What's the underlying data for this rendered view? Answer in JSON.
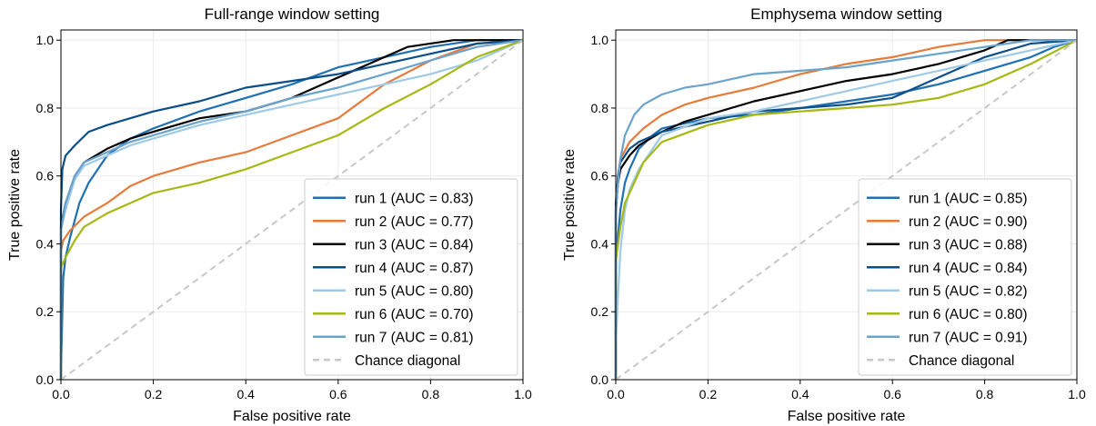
{
  "chart_data": [
    {
      "type": "line",
      "title": "Full-range window setting",
      "xlabel": "False positive rate",
      "ylabel": "True positive rate",
      "xlim": [
        0,
        1
      ],
      "ylim": [
        0,
        1.03
      ],
      "xticks": [
        "0.0",
        "0.2",
        "0.4",
        "0.6",
        "0.8",
        "1.0"
      ],
      "yticks": [
        "0.0",
        "0.2",
        "0.4",
        "0.6",
        "0.8",
        "1.0"
      ],
      "grid": true,
      "legend_position": "lower-right",
      "series": [
        {
          "name": "run 1 (AUC = 0.83)",
          "color": "#1f6fb4",
          "points": [
            [
              0,
              0
            ],
            [
              0,
              0.02
            ],
            [
              0.005,
              0.3
            ],
            [
              0.01,
              0.36
            ],
            [
              0.02,
              0.42
            ],
            [
              0.04,
              0.52
            ],
            [
              0.06,
              0.58
            ],
            [
              0.08,
              0.62
            ],
            [
              0.1,
              0.66
            ],
            [
              0.15,
              0.71
            ],
            [
              0.2,
              0.74
            ],
            [
              0.3,
              0.79
            ],
            [
              0.4,
              0.83
            ],
            [
              0.5,
              0.87
            ],
            [
              0.6,
              0.92
            ],
            [
              0.7,
              0.95
            ],
            [
              0.8,
              0.98
            ],
            [
              0.9,
              1.0
            ],
            [
              1,
              1
            ]
          ]
        },
        {
          "name": "run 2 (AUC = 0.77)",
          "color": "#e87a3a",
          "points": [
            [
              0,
              0
            ],
            [
              0,
              0.38
            ],
            [
              0.005,
              0.41
            ],
            [
              0.02,
              0.44
            ],
            [
              0.05,
              0.48
            ],
            [
              0.1,
              0.52
            ],
            [
              0.15,
              0.57
            ],
            [
              0.2,
              0.6
            ],
            [
              0.3,
              0.64
            ],
            [
              0.4,
              0.67
            ],
            [
              0.5,
              0.72
            ],
            [
              0.6,
              0.77
            ],
            [
              0.7,
              0.87
            ],
            [
              0.8,
              0.94
            ],
            [
              0.9,
              0.99
            ],
            [
              1,
              1
            ]
          ]
        },
        {
          "name": "run 3 (AUC = 0.84)",
          "color": "#000000",
          "points": [
            [
              0,
              0
            ],
            [
              0,
              0.45
            ],
            [
              0.01,
              0.52
            ],
            [
              0.03,
              0.6
            ],
            [
              0.05,
              0.64
            ],
            [
              0.1,
              0.68
            ],
            [
              0.15,
              0.71
            ],
            [
              0.2,
              0.73
            ],
            [
              0.3,
              0.77
            ],
            [
              0.4,
              0.79
            ],
            [
              0.5,
              0.83
            ],
            [
              0.6,
              0.89
            ],
            [
              0.7,
              0.95
            ],
            [
              0.75,
              0.98
            ],
            [
              0.85,
              1.0
            ],
            [
              1,
              1
            ]
          ]
        },
        {
          "name": "run 4 (AUC = 0.87)",
          "color": "#0b4e8a",
          "points": [
            [
              0,
              0
            ],
            [
              0,
              0.5
            ],
            [
              0.003,
              0.62
            ],
            [
              0.01,
              0.66
            ],
            [
              0.03,
              0.69
            ],
            [
              0.06,
              0.73
            ],
            [
              0.1,
              0.75
            ],
            [
              0.15,
              0.77
            ],
            [
              0.2,
              0.79
            ],
            [
              0.3,
              0.82
            ],
            [
              0.4,
              0.86
            ],
            [
              0.5,
              0.88
            ],
            [
              0.6,
              0.9
            ],
            [
              0.7,
              0.93
            ],
            [
              0.8,
              0.96
            ],
            [
              0.9,
              0.99
            ],
            [
              1,
              1
            ]
          ]
        },
        {
          "name": "run 5 (AUC = 0.80)",
          "color": "#9ecae8",
          "points": [
            [
              0,
              0
            ],
            [
              0,
              0.44
            ],
            [
              0.01,
              0.5
            ],
            [
              0.03,
              0.59
            ],
            [
              0.05,
              0.63
            ],
            [
              0.1,
              0.66
            ],
            [
              0.15,
              0.69
            ],
            [
              0.2,
              0.71
            ],
            [
              0.3,
              0.75
            ],
            [
              0.4,
              0.78
            ],
            [
              0.5,
              0.81
            ],
            [
              0.6,
              0.84
            ],
            [
              0.7,
              0.87
            ],
            [
              0.8,
              0.9
            ],
            [
              0.9,
              0.94
            ],
            [
              1,
              1
            ]
          ]
        },
        {
          "name": "run 6 (AUC = 0.70)",
          "color": "#a6b812",
          "points": [
            [
              0,
              0
            ],
            [
              0,
              0.33
            ],
            [
              0.01,
              0.36
            ],
            [
              0.03,
              0.41
            ],
            [
              0.05,
              0.45
            ],
            [
              0.1,
              0.49
            ],
            [
              0.15,
              0.52
            ],
            [
              0.2,
              0.55
            ],
            [
              0.3,
              0.58
            ],
            [
              0.4,
              0.62
            ],
            [
              0.5,
              0.67
            ],
            [
              0.6,
              0.72
            ],
            [
              0.7,
              0.8
            ],
            [
              0.8,
              0.87
            ],
            [
              0.9,
              0.95
            ],
            [
              1,
              1
            ]
          ]
        },
        {
          "name": "run 7 (AUC = 0.81)",
          "color": "#6aa3cc",
          "points": [
            [
              0,
              0
            ],
            [
              0,
              0.44
            ],
            [
              0.01,
              0.52
            ],
            [
              0.03,
              0.6
            ],
            [
              0.05,
              0.64
            ],
            [
              0.1,
              0.67
            ],
            [
              0.15,
              0.7
            ],
            [
              0.2,
              0.72
            ],
            [
              0.3,
              0.76
            ],
            [
              0.4,
              0.79
            ],
            [
              0.5,
              0.83
            ],
            [
              0.6,
              0.86
            ],
            [
              0.7,
              0.9
            ],
            [
              0.8,
              0.94
            ],
            [
              0.9,
              0.98
            ],
            [
              1,
              1
            ]
          ]
        },
        {
          "name": "Chance diagonal",
          "color": "#c8c8c8",
          "dashed": true,
          "points": [
            [
              0,
              0
            ],
            [
              1,
              1
            ]
          ]
        }
      ]
    },
    {
      "type": "line",
      "title": "Emphysema window setting",
      "xlabel": "False positive rate",
      "ylabel": "True positive rate",
      "xlim": [
        0,
        1
      ],
      "ylim": [
        0,
        1.03
      ],
      "xticks": [
        "0.0",
        "0.2",
        "0.4",
        "0.6",
        "0.8",
        "1.0"
      ],
      "yticks": [
        "0.0",
        "0.2",
        "0.4",
        "0.6",
        "0.8",
        "1.0"
      ],
      "grid": true,
      "legend_position": "lower-right",
      "series": [
        {
          "name": "run 1 (AUC = 0.85)",
          "color": "#1f6fb4",
          "points": [
            [
              0,
              0
            ],
            [
              0,
              0.35
            ],
            [
              0.01,
              0.5
            ],
            [
              0.02,
              0.58
            ],
            [
              0.03,
              0.62
            ],
            [
              0.05,
              0.68
            ],
            [
              0.08,
              0.72
            ],
            [
              0.1,
              0.74
            ],
            [
              0.2,
              0.77
            ],
            [
              0.3,
              0.78
            ],
            [
              0.4,
              0.8
            ],
            [
              0.5,
              0.82
            ],
            [
              0.6,
              0.84
            ],
            [
              0.7,
              0.87
            ],
            [
              0.8,
              0.91
            ],
            [
              0.9,
              0.95
            ],
            [
              0.95,
              0.98
            ],
            [
              1,
              1
            ]
          ]
        },
        {
          "name": "run 2 (AUC = 0.90)",
          "color": "#e87a3a",
          "points": [
            [
              0,
              0
            ],
            [
              0,
              0.48
            ],
            [
              0.005,
              0.6
            ],
            [
              0.01,
              0.65
            ],
            [
              0.03,
              0.7
            ],
            [
              0.06,
              0.74
            ],
            [
              0.1,
              0.78
            ],
            [
              0.15,
              0.81
            ],
            [
              0.2,
              0.83
            ],
            [
              0.3,
              0.86
            ],
            [
              0.4,
              0.9
            ],
            [
              0.5,
              0.93
            ],
            [
              0.6,
              0.95
            ],
            [
              0.7,
              0.98
            ],
            [
              0.8,
              1.0
            ],
            [
              1,
              1
            ]
          ]
        },
        {
          "name": "run 3 (AUC = 0.88)",
          "color": "#000000",
          "points": [
            [
              0,
              0
            ],
            [
              0,
              0.5
            ],
            [
              0.005,
              0.58
            ],
            [
              0.01,
              0.62
            ],
            [
              0.03,
              0.66
            ],
            [
              0.05,
              0.69
            ],
            [
              0.1,
              0.73
            ],
            [
              0.15,
              0.76
            ],
            [
              0.2,
              0.78
            ],
            [
              0.3,
              0.82
            ],
            [
              0.4,
              0.85
            ],
            [
              0.5,
              0.88
            ],
            [
              0.6,
              0.9
            ],
            [
              0.7,
              0.93
            ],
            [
              0.8,
              0.97
            ],
            [
              0.85,
              1.0
            ],
            [
              1,
              1
            ]
          ]
        },
        {
          "name": "run 4 (AUC = 0.84)",
          "color": "#0b4e8a",
          "points": [
            [
              0,
              0
            ],
            [
              0,
              0.52
            ],
            [
              0.005,
              0.6
            ],
            [
              0.01,
              0.64
            ],
            [
              0.03,
              0.68
            ],
            [
              0.05,
              0.7
            ],
            [
              0.1,
              0.73
            ],
            [
              0.2,
              0.76
            ],
            [
              0.3,
              0.79
            ],
            [
              0.4,
              0.8
            ],
            [
              0.5,
              0.81
            ],
            [
              0.6,
              0.83
            ],
            [
              0.7,
              0.89
            ],
            [
              0.8,
              0.95
            ],
            [
              0.9,
              0.99
            ],
            [
              1,
              1
            ]
          ]
        },
        {
          "name": "run 5 (AUC = 0.82)",
          "color": "#9ecae8",
          "points": [
            [
              0,
              0
            ],
            [
              0,
              0.1
            ],
            [
              0.005,
              0.25
            ],
            [
              0.01,
              0.38
            ],
            [
              0.02,
              0.5
            ],
            [
              0.03,
              0.56
            ],
            [
              0.05,
              0.62
            ],
            [
              0.08,
              0.68
            ],
            [
              0.1,
              0.72
            ],
            [
              0.2,
              0.77
            ],
            [
              0.3,
              0.79
            ],
            [
              0.4,
              0.82
            ],
            [
              0.5,
              0.85
            ],
            [
              0.6,
              0.88
            ],
            [
              0.7,
              0.91
            ],
            [
              0.8,
              0.94
            ],
            [
              0.9,
              0.97
            ],
            [
              1,
              1
            ]
          ]
        },
        {
          "name": "run 6 (AUC = 0.80)",
          "color": "#a6b812",
          "points": [
            [
              0,
              0
            ],
            [
              0,
              0.35
            ],
            [
              0.01,
              0.45
            ],
            [
              0.02,
              0.52
            ],
            [
              0.04,
              0.58
            ],
            [
              0.06,
              0.64
            ],
            [
              0.1,
              0.7
            ],
            [
              0.2,
              0.75
            ],
            [
              0.3,
              0.78
            ],
            [
              0.4,
              0.79
            ],
            [
              0.5,
              0.8
            ],
            [
              0.6,
              0.81
            ],
            [
              0.7,
              0.83
            ],
            [
              0.8,
              0.87
            ],
            [
              0.9,
              0.93
            ],
            [
              1,
              1
            ]
          ]
        },
        {
          "name": "run 7 (AUC = 0.91)",
          "color": "#6aa3cc",
          "points": [
            [
              0,
              0
            ],
            [
              0,
              0.5
            ],
            [
              0.005,
              0.58
            ],
            [
              0.01,
              0.65
            ],
            [
              0.02,
              0.72
            ],
            [
              0.04,
              0.78
            ],
            [
              0.06,
              0.81
            ],
            [
              0.1,
              0.84
            ],
            [
              0.15,
              0.86
            ],
            [
              0.2,
              0.87
            ],
            [
              0.3,
              0.9
            ],
            [
              0.4,
              0.91
            ],
            [
              0.5,
              0.92
            ],
            [
              0.6,
              0.94
            ],
            [
              0.7,
              0.96
            ],
            [
              0.8,
              0.98
            ],
            [
              0.9,
              1.0
            ],
            [
              1,
              1
            ]
          ]
        },
        {
          "name": "Chance diagonal",
          "color": "#c8c8c8",
          "dashed": true,
          "points": [
            [
              0,
              0
            ],
            [
              1,
              1
            ]
          ]
        }
      ]
    }
  ]
}
